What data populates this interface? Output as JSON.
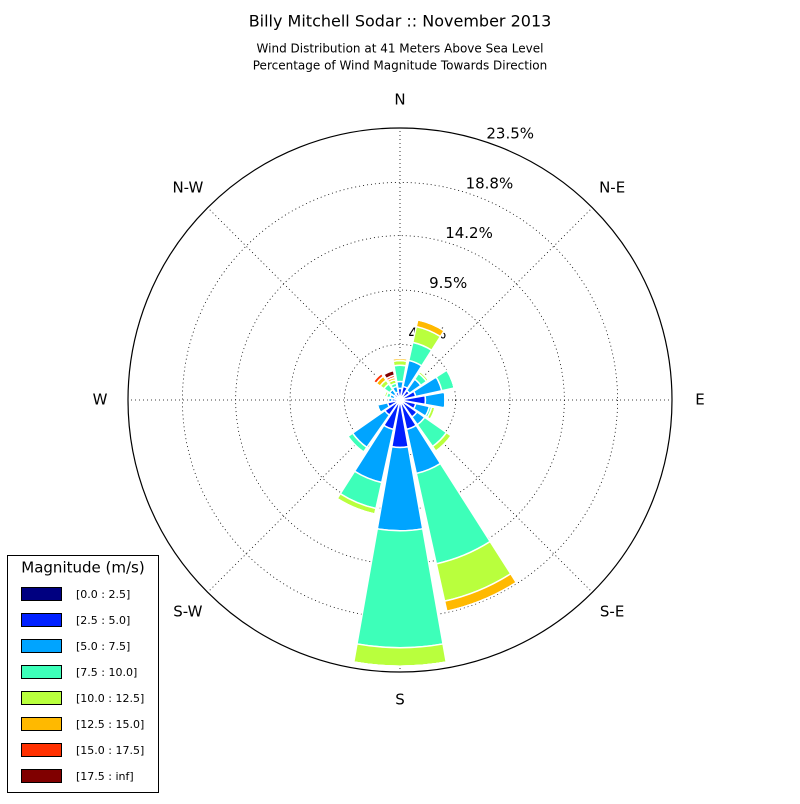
{
  "chart_data": {
    "type": "windrose",
    "title": "Billy Mitchell Sodar :: November 2013",
    "subtitle": [
      "Wind Distribution at 41 Meters Above Sea Level",
      "Percentage of Wind Magnitude Towards Direction"
    ],
    "categories": [
      "N",
      null,
      "N-E",
      null,
      "E",
      null,
      "S-E",
      null,
      "S",
      null,
      "S-W",
      null,
      "W",
      null,
      "N-W",
      null
    ],
    "rlim": [
      0,
      23.5
    ],
    "rticks": [
      {
        "value": 4.8,
        "label": "4.8%"
      },
      {
        "value": 9.5,
        "label": "9.5%"
      },
      {
        "value": 14.2,
        "label": "14.2%"
      },
      {
        "value": 18.8,
        "label": "18.8%"
      },
      {
        "value": 23.5,
        "label": "23.5%"
      }
    ],
    "grid": true,
    "legend_title": "Magnitude (m/s)",
    "legend_position": "lower left",
    "series": [
      {
        "name": "[0.0 : 2.5]",
        "color": "#000080",
        "values": [
          0.2,
          0.2,
          0.2,
          0.2,
          0.3,
          0.2,
          0.2,
          0.2,
          0.2,
          0.1,
          0.1,
          0.1,
          0.2,
          0.1,
          0.1,
          0.1
        ]
      },
      {
        "name": "[2.5 : 5.0]",
        "color": "#0020ff",
        "values": [
          0.8,
          1.0,
          0.8,
          1.2,
          1.9,
          1.2,
          1.6,
          2.4,
          3.9,
          2.5,
          1.5,
          1.0,
          0.5,
          0.4,
          0.5,
          0.6
        ]
      },
      {
        "name": "[5.0 : 7.5]",
        "color": "#00a4ff",
        "values": [
          0.6,
          2.3,
          1.2,
          2.3,
          1.7,
          1.2,
          0.8,
          3.9,
          7.2,
          4.7,
          3.4,
          0.9,
          0.3,
          0.4,
          0.5,
          0.5
        ]
      },
      {
        "name": "[7.5 : 10.0]",
        "color": "#3dffb9",
        "values": [
          1.4,
          1.6,
          0.6,
          1.1,
          0,
          0.2,
          2.3,
          8.0,
          10.1,
          2.3,
          0.5,
          0,
          0,
          0.3,
          0.6,
          0.3
        ]
      },
      {
        "name": "[10.0 : 12.5]",
        "color": "#b9ff3d",
        "values": [
          0.4,
          1.4,
          0.2,
          0,
          0,
          0.3,
          0.5,
          3.3,
          1.6,
          0.5,
          0,
          0,
          0,
          0.2,
          0.4,
          0.3
        ]
      },
      {
        "name": "[12.5 : 15.0]",
        "color": "#ffb900",
        "values": [
          0.2,
          0.6,
          0,
          0,
          0,
          0,
          0,
          0.9,
          0,
          0,
          0,
          0,
          0,
          0,
          0.4,
          0.2
        ]
      },
      {
        "name": "[15.0 : 17.5]",
        "color": "#ff3000",
        "values": [
          0,
          0,
          0,
          0,
          0,
          0,
          0,
          0,
          0,
          0,
          0,
          0,
          0,
          0,
          0.3,
          0.2
        ]
      },
      {
        "name": "[17.5 : inf]",
        "color": "#800000",
        "values": [
          0,
          0,
          0,
          0,
          0,
          0,
          0,
          0,
          0,
          0,
          0,
          0,
          0,
          0,
          0,
          0.4
        ]
      }
    ]
  }
}
